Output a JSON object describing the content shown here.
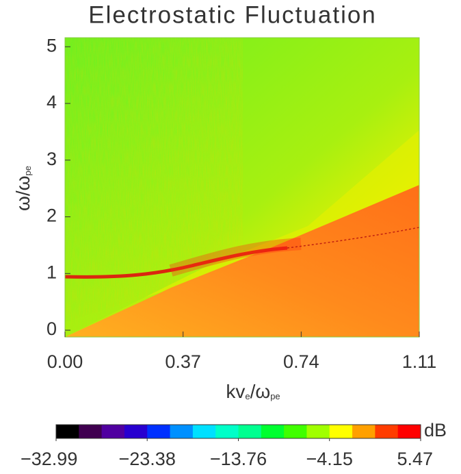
{
  "chart_data": {
    "type": "heatmap",
    "title": "Electrostatic Fluctuation",
    "x_label": [
      "kv",
      "e",
      "/ω",
      "pe"
    ],
    "y_label": [
      "ω/ω",
      "pe"
    ],
    "xlim": [
      0,
      1.11
    ],
    "xticks": [
      {
        "value": 0,
        "label": "0.00"
      },
      {
        "value": 0.37,
        "label": "0.37"
      },
      {
        "value": 0.74,
        "label": "0.74"
      },
      {
        "value": 1.11,
        "label": "1.11"
      }
    ],
    "ylim": [
      -0.12,
      5.16
    ],
    "yticks": [
      0,
      1,
      2,
      3,
      4,
      5
    ],
    "colorbar": {
      "label": "dB",
      "clim": [
        -32.99,
        5.47
      ],
      "ticks": [
        {
          "value": -32.99,
          "label": "−32.99"
        },
        {
          "value": -23.38,
          "label": "−23.38"
        },
        {
          "value": -13.76,
          "label": "−13.76"
        },
        {
          "value": -4.15,
          "label": "−4.15"
        },
        {
          "value": 5.47,
          "label": "5.47"
        }
      ],
      "colors": [
        "#000000",
        "#400050",
        "#5000a0",
        "#2800d0",
        "#0030ff",
        "#0090ff",
        "#00e0ff",
        "#00ffc8",
        "#00ff90",
        "#00ff30",
        "#40ff00",
        "#a0ff00",
        "#ffff00",
        "#ffa000",
        "#ff3c00",
        "#ff0000"
      ]
    }
  }
}
